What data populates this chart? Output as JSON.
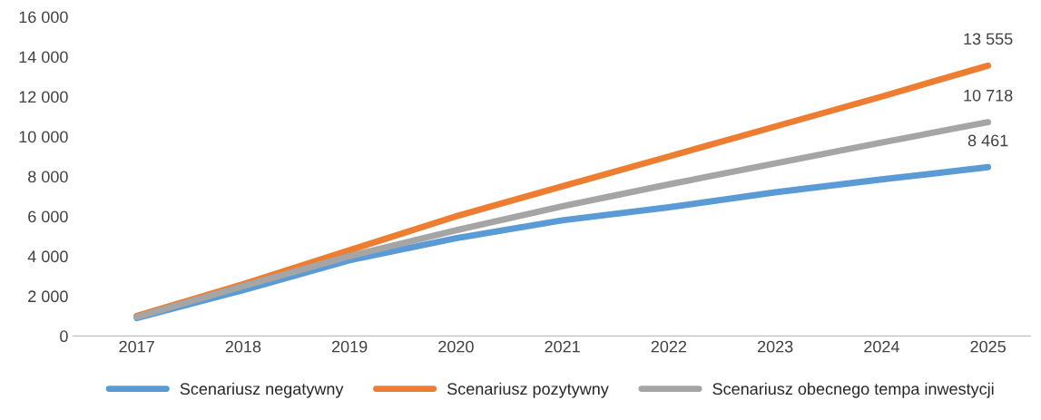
{
  "chart_data": {
    "type": "line",
    "categories": [
      "2017",
      "2018",
      "2019",
      "2020",
      "2021",
      "2022",
      "2023",
      "2024",
      "2025"
    ],
    "series": [
      {
        "name": "Scenariusz negatywny",
        "color": "#5b9bd5",
        "values": [
          900,
          2300,
          3800,
          4900,
          5800,
          6450,
          7200,
          7850,
          8461
        ],
        "value_labels": [
          null,
          null,
          null,
          null,
          null,
          null,
          null,
          null,
          "8 461"
        ]
      },
      {
        "name": "Scenariusz pozytywny",
        "color": "#ed7d31",
        "values": [
          1000,
          2600,
          4300,
          6000,
          7500,
          9000,
          10500,
          12000,
          13555
        ],
        "value_labels": [
          null,
          null,
          null,
          null,
          null,
          null,
          null,
          null,
          "13 555"
        ]
      },
      {
        "name": "Scenariusz obecnego tempa inwestycji",
        "color": "#a5a5a5",
        "values": [
          950,
          2500,
          4000,
          5300,
          6500,
          7600,
          8650,
          9700,
          10718
        ],
        "value_labels": [
          null,
          null,
          null,
          null,
          null,
          null,
          null,
          null,
          "10 718"
        ]
      }
    ],
    "ylim": [
      0,
      16000
    ],
    "yticks": [
      0,
      {
        "value": 2000,
        "label": "2 000"
      },
      {
        "value": 4000,
        "label": "4 000"
      },
      {
        "value": 6000,
        "label": "6 000"
      },
      {
        "value": 8000,
        "label": "8 000"
      },
      {
        "value": 10000,
        "label": "10 000"
      },
      {
        "value": 12000,
        "label": "12 000"
      },
      {
        "value": 14000,
        "label": "14 000"
      },
      {
        "value": 16000,
        "label": "16 000"
      }
    ],
    "grid": false,
    "legend": "bottom",
    "marker": "none",
    "line_style": "solid"
  }
}
